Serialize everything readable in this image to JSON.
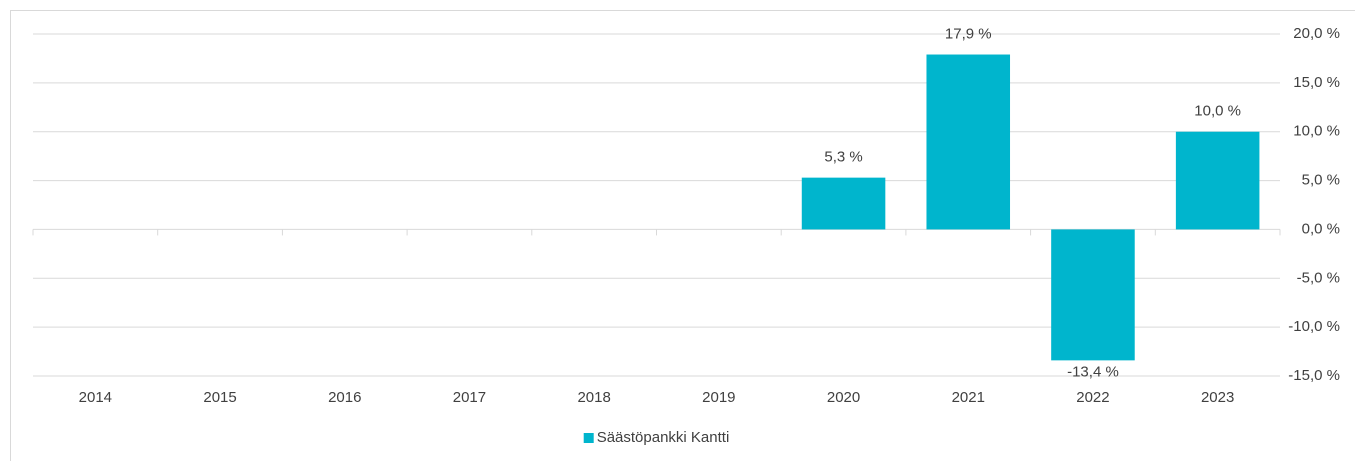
{
  "chart_data": {
    "type": "bar",
    "categories": [
      "2014",
      "2015",
      "2016",
      "2017",
      "2018",
      "2019",
      "2020",
      "2021",
      "2022",
      "2023"
    ],
    "series": [
      {
        "name": "Säästöpankki Kantti",
        "color": "#00b5cd",
        "values": [
          null,
          null,
          null,
          null,
          null,
          null,
          5.3,
          17.9,
          -13.4,
          10.0
        ],
        "value_labels": [
          null,
          null,
          null,
          null,
          null,
          null,
          "5,3 %",
          "17,9 %",
          "-13,4 %",
          "10,0 %"
        ]
      }
    ],
    "ylim": [
      -15,
      20
    ],
    "yticks": [
      {
        "value": -15,
        "label": "-15,0 %"
      },
      {
        "value": -10,
        "label": "-10,0 %"
      },
      {
        "value": -5,
        "label": "-5,0 %"
      },
      {
        "value": 0,
        "label": "0,0 %"
      },
      {
        "value": 5,
        "label": "5,0 %"
      },
      {
        "value": 10,
        "label": "10,0 %"
      },
      {
        "value": 15,
        "label": "15,0 %"
      },
      {
        "value": 20,
        "label": "20,0 %"
      }
    ],
    "grid": true,
    "legend": "bottom"
  }
}
